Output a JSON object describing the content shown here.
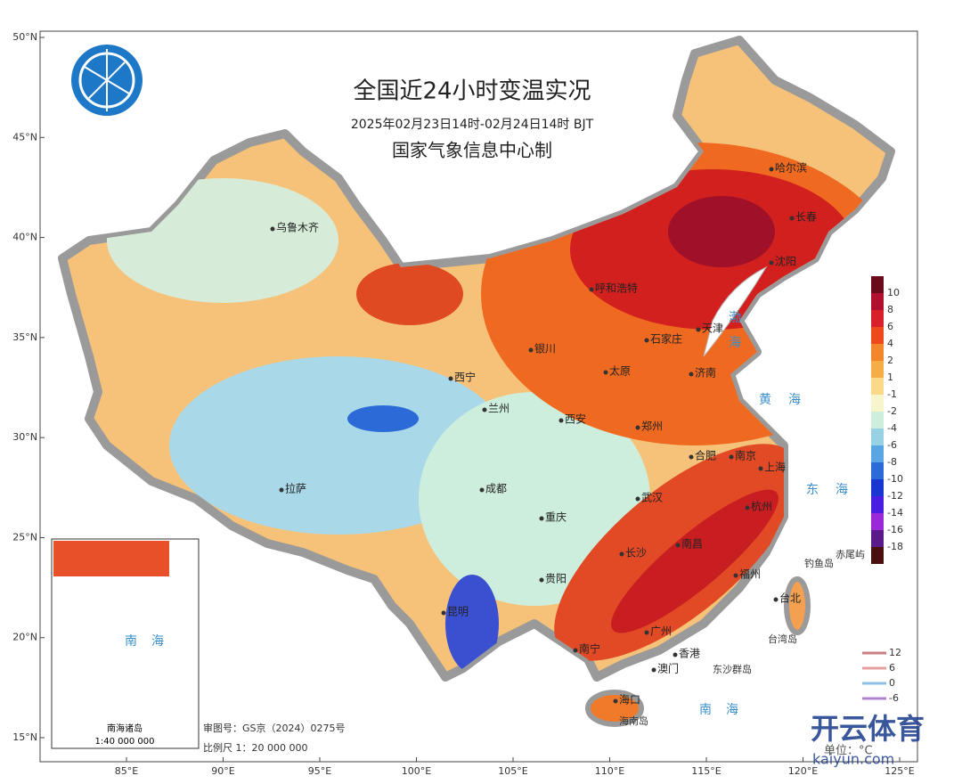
{
  "header": {
    "title": "全国近24小时变温实况",
    "subtitle": "2025年02月23日14时-02月24日14时 BJT",
    "producer": "国家气象信息中心制"
  },
  "lat_ticks": [
    {
      "value": 50,
      "label": "50°N"
    },
    {
      "value": 45,
      "label": "45°N"
    },
    {
      "value": 40,
      "label": "40°N"
    },
    {
      "value": 35,
      "label": "35°N"
    },
    {
      "value": 30,
      "label": "30°N"
    },
    {
      "value": 25,
      "label": "25°N"
    },
    {
      "value": 20,
      "label": "20°N"
    },
    {
      "value": 15,
      "label": "15°N"
    }
  ],
  "lon_ticks": [
    {
      "value": 85,
      "label": "85°E"
    },
    {
      "value": 90,
      "label": "90°E"
    },
    {
      "value": 95,
      "label": "95°E"
    },
    {
      "value": 100,
      "label": "100°E"
    },
    {
      "value": 105,
      "label": "105°E"
    },
    {
      "value": 110,
      "label": "110°E"
    },
    {
      "value": 115,
      "label": "115°E"
    },
    {
      "value": 120,
      "label": "120°E"
    },
    {
      "value": 125,
      "label": "125°E"
    }
  ],
  "cities": [
    "乌鲁木齐",
    "哈尔滨",
    "长春",
    "沈阳",
    "呼和浩特",
    "天津",
    "石家庄",
    "银川",
    "太原",
    "济南",
    "西宁",
    "兰州",
    "西安",
    "郑州",
    "合肥",
    "南京",
    "上海",
    "拉萨",
    "成都",
    "武汉",
    "杭州",
    "重庆",
    "长沙",
    "南昌",
    "福州",
    "贵阳",
    "昆明",
    "台北",
    "南宁",
    "广州",
    "香港",
    "澳门",
    "海口"
  ],
  "seas": [
    "渤",
    "海",
    "黄",
    "海",
    "东",
    "海",
    "南",
    "海"
  ],
  "islands": [
    "钓鱼岛",
    "赤尾屿",
    "台湾岛",
    "东沙群岛",
    "海南岛"
  ],
  "legend": {
    "items": [
      {
        "label": "10",
        "color": "#b0102e"
      },
      {
        "label": "8",
        "color": "#d8202a"
      },
      {
        "label": "6",
        "color": "#ec4a1e"
      },
      {
        "label": "4",
        "color": "#f3852a"
      },
      {
        "label": "2",
        "color": "#f6ad45"
      },
      {
        "label": "1",
        "color": "#fad98a"
      },
      {
        "label": "-1",
        "color": "#f6f5cc"
      },
      {
        "label": "-2",
        "color": "#cdeedd"
      },
      {
        "label": "-4",
        "color": "#96d2e4"
      },
      {
        "label": "-6",
        "color": "#5aa6e2"
      },
      {
        "label": "-8",
        "color": "#2c6ad8"
      },
      {
        "label": "-10",
        "color": "#1a36d0"
      },
      {
        "label": "-12",
        "color": "#4a1ee0"
      },
      {
        "label": "-14",
        "color": "#9a2ad8"
      },
      {
        "label": "-16",
        "color": "#5a1a8a"
      },
      {
        "label": "-18",
        "color": "#4a1010"
      }
    ],
    "top_color": "#6a0a1a",
    "lines": [
      {
        "label": "12",
        "color": "#c98080"
      },
      {
        "label": "6",
        "color": "#e6a0a0"
      },
      {
        "label": "0",
        "color": "#8fc0e8"
      },
      {
        "label": "-6",
        "color": "#b080d0"
      }
    ],
    "unit": "单位：°C"
  },
  "notes": {
    "approval": "审图号：GS京（2024）0275号",
    "scale": "比例尺 1：20 000 000"
  },
  "inset": {
    "title": "南海诸岛",
    "scale": "1:40 000 000",
    "labels": [
      "南",
      "海"
    ]
  },
  "watermark": {
    "brand": "开云体育",
    "site": "kaiyun.com"
  }
}
